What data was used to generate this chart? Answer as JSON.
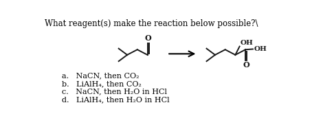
{
  "title": "What reagent(s) make the reaction below possible?\\",
  "background_color": "#ffffff",
  "text_color": "#000000",
  "options": [
    "a.   NaCN, then CO₂",
    "b.   LiAlH₄, then CO₂",
    "c.   NaCN, then H₂O in HCl",
    "d.   LiAlH₄, then H₂O in HCl"
  ],
  "figsize": [
    4.7,
    1.85
  ],
  "dpi": 100,
  "lw": 1.4,
  "bond_color": "#1a1a1a",
  "label_color": "#1a1a1a",
  "font_size_label": 7.5,
  "font_size_title": 8.5,
  "font_size_options": 8.0
}
